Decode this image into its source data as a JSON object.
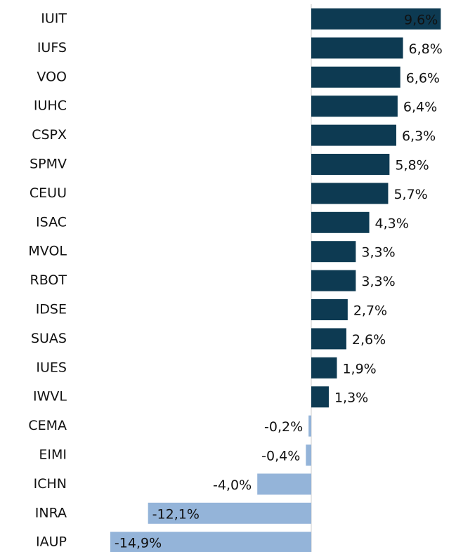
{
  "chart_data": {
    "type": "bar",
    "orientation": "horizontal",
    "categories": [
      "IUIT",
      "IUFS",
      "VOO",
      "IUHC",
      "CSPX",
      "SPMV",
      "CEUU",
      "ISAC",
      "MVOL",
      "RBOT",
      "IDSE",
      "SUAS",
      "IUES",
      "IWVL",
      "CEMA",
      "EIMI",
      "ICHN",
      "INRA",
      "IAUP"
    ],
    "values": [
      9.6,
      6.8,
      6.6,
      6.4,
      6.3,
      5.8,
      5.7,
      4.3,
      3.3,
      3.3,
      2.7,
      2.6,
      1.9,
      1.3,
      -0.2,
      -0.4,
      -4.0,
      -12.1,
      -14.9
    ],
    "value_labels": [
      "9,6%",
      "6,8%",
      "6,6%",
      "6,4%",
      "6,3%",
      "5,8%",
      "5,7%",
      "4,3%",
      "3,3%",
      "3,3%",
      "2,7%",
      "2,6%",
      "1,9%",
      "1,3%",
      "-0,2%",
      "-0,4%",
      "-4,0%",
      "-12,1%",
      "-14,9%"
    ],
    "colors": {
      "positive": "#0d3a52",
      "negative": "#94b4d9"
    },
    "xlim": [
      -15,
      10
    ]
  }
}
